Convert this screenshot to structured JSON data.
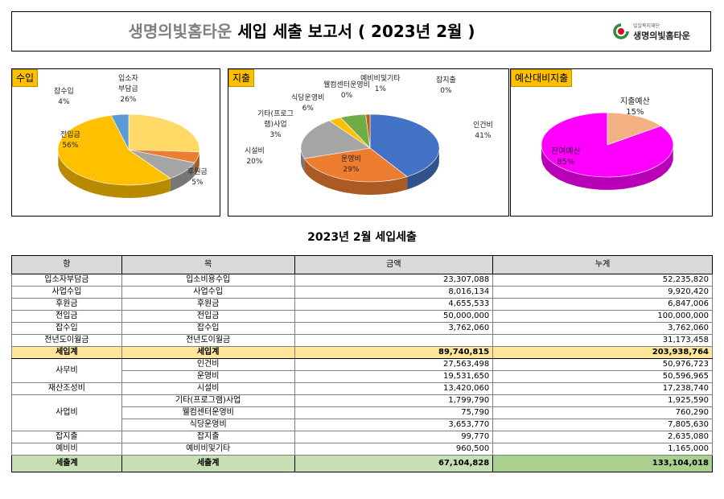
{
  "header": {
    "title_main": "생명의빛홈타운",
    "title_rest": "세입 세출 보고서 ( 2023년 2월 )",
    "logo_sub": "일일복지재단",
    "logo_name": "생명의빛홈타운"
  },
  "charts": [
    {
      "label": "수입",
      "slices": [
        {
          "name": "입소자부담금",
          "pct": 26,
          "color": "#ffd966"
        },
        {
          "name": "후원금",
          "pct": 5,
          "color": "#ed7d31"
        },
        {
          "name": "",
          "pct": 9,
          "color": "#a5a5a5"
        },
        {
          "name": "전입금",
          "pct": 56,
          "color": "#ffc000"
        },
        {
          "name": "잡수입",
          "pct": 4,
          "color": "#5b9bd5"
        }
      ],
      "labels": {
        "a": [
          "입소자",
          "부담금",
          "26%"
        ],
        "b": [
          "잡수입",
          "4%"
        ],
        "c": [
          "전입금",
          "56%"
        ],
        "d": [
          "후원금",
          "5%"
        ]
      }
    },
    {
      "label": "지출",
      "slices": [
        {
          "name": "인건비",
          "pct": 41,
          "color": "#4472c4"
        },
        {
          "name": "운영비",
          "pct": 29,
          "color": "#ed7d31"
        },
        {
          "name": "시설비",
          "pct": 20,
          "color": "#a5a5a5"
        },
        {
          "name": "기타(프로그램)사업",
          "pct": 3,
          "color": "#ffc000"
        },
        {
          "name": "식당운영비",
          "pct": 6,
          "color": "#70ad47"
        },
        {
          "name": "웰컴센터운영비",
          "pct": 0,
          "color": "#5b9bd5"
        },
        {
          "name": "예비비및기타",
          "pct": 1,
          "color": "#c55a11"
        },
        {
          "name": "잡지출",
          "pct": 0,
          "color": "#264478"
        }
      ],
      "labels": {
        "a": [
          "예비비및기타",
          "1%"
        ],
        "b": [
          "잡지출",
          "0%"
        ],
        "c": [
          "웰컴센터운영비",
          "0%"
        ],
        "d": [
          "식당운영비",
          "6%"
        ],
        "e": [
          "기타(프로그",
          "램)사업",
          "3%"
        ],
        "f": [
          "시설비",
          "20%"
        ],
        "g": [
          "운영비",
          "29%"
        ],
        "h": [
          "인건비",
          "41%"
        ]
      }
    },
    {
      "label": "예산대비지출",
      "slices": [
        {
          "name": "잔여예산",
          "pct": 85,
          "color": "#ff00ff"
        },
        {
          "name": "지출예산",
          "pct": 15,
          "color": "#f4b183"
        }
      ],
      "labels": {
        "a": [
          "지출예산",
          "15%"
        ],
        "b": [
          "잔여예산",
          "85%"
        ]
      }
    }
  ],
  "section_title": "2023년 2월 세입세출",
  "table": {
    "headers": [
      "항",
      "목",
      "금액",
      "누계"
    ],
    "income_rows": [
      [
        "입소자부담금",
        "입소비용수입",
        "23,307,088",
        "52,235,820"
      ],
      [
        "사업수입",
        "사업수입",
        "8,016,134",
        "9,920,420"
      ],
      [
        "후원금",
        "후원금",
        "4,655,533",
        "6,847,006"
      ],
      [
        "전입금",
        "전입금",
        "50,000,000",
        "100,000,000"
      ],
      [
        "잡수입",
        "잡수입",
        "3,762,060",
        "3,762,060"
      ],
      [
        "전년도이월금",
        "전년도이월금",
        "",
        "31,173,458"
      ]
    ],
    "income_total": [
      "세입계",
      "세입계",
      "89,740,815",
      "203,938,764"
    ],
    "expense": {
      "office": {
        "hang": "사무비",
        "rows": [
          [
            "인건비",
            "27,563,498",
            "50,976,723"
          ],
          [
            "운영비",
            "19,531,650",
            "50,596,965"
          ]
        ]
      },
      "facility": {
        "hang": "재산조성비",
        "rows": [
          [
            "시설비",
            "13,420,060",
            "17,238,740"
          ]
        ]
      },
      "business": {
        "hang": "사업비",
        "rows": [
          [
            "기타(프로그램)사업",
            "1,799,790",
            "1,925,590"
          ],
          [
            "웰컴센터운영비",
            "75,790",
            "760,290"
          ],
          [
            "식당운영비",
            "3,653,770",
            "7,805,630"
          ]
        ]
      },
      "misc": {
        "hang": "잡지출",
        "rows": [
          [
            "잡지출",
            "99,770",
            "2,635,080"
          ]
        ]
      },
      "reserve": {
        "hang": "예비비",
        "rows": [
          [
            "예비비및기타",
            "960,500",
            "1,165,000"
          ]
        ]
      }
    },
    "expense_total": [
      "세출계",
      "세출계",
      "67,104,828",
      "133,104,018"
    ]
  }
}
